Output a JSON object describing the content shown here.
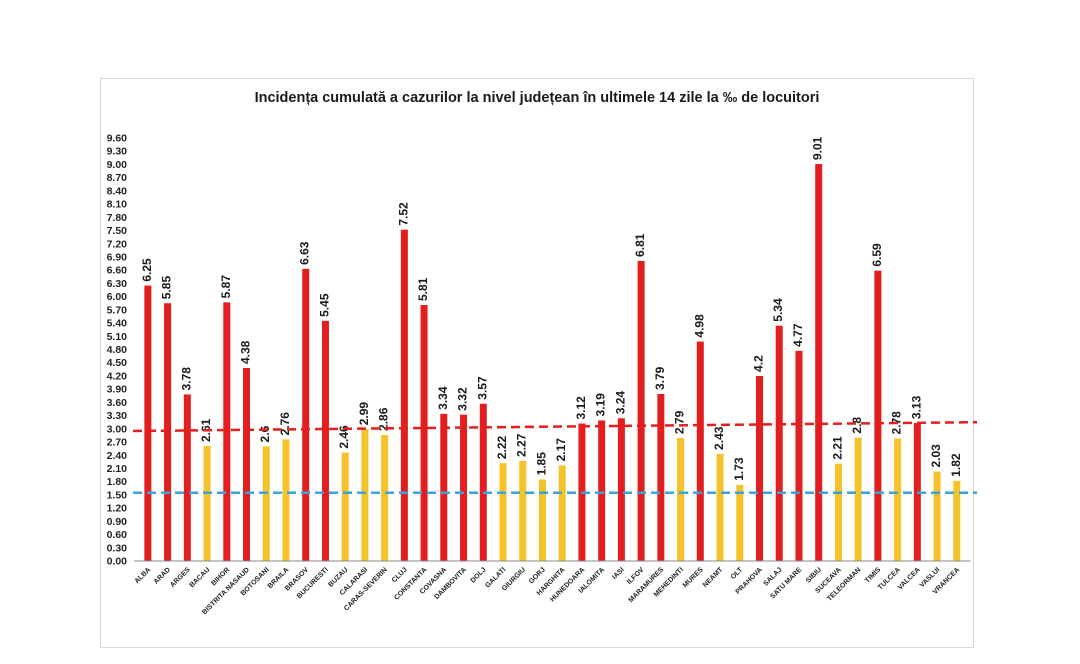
{
  "chart_data": {
    "type": "bar",
    "title": "Incidența cumulată a cazurilor la nivel județean în ultimele 14 zile la ‰ de locuitori",
    "xlabel": "",
    "ylabel": "",
    "ylim": [
      0,
      9.6
    ],
    "yticks": [
      "0.00",
      "0.30",
      "0.60",
      "0.90",
      "1.20",
      "1.50",
      "1.80",
      "2.10",
      "2.40",
      "2.70",
      "3.00",
      "3.30",
      "3.60",
      "3.90",
      "4.20",
      "4.50",
      "4.80",
      "5.10",
      "5.40",
      "5.70",
      "6.00",
      "6.30",
      "6.60",
      "6.90",
      "7.20",
      "7.50",
      "7.80",
      "8.10",
      "8.40",
      "8.70",
      "9.00",
      "9.30",
      "9.60"
    ],
    "categories": [
      "ALBA",
      "ARAD",
      "ARGES",
      "BACAU",
      "BIHOR",
      "BISTRITA NASAUD",
      "BOTOSANI",
      "BRAILA",
      "BRASOV",
      "BUCURESTI",
      "BUZAU",
      "CALARASI",
      "CARAS-SEVERIN",
      "CLUJ",
      "CONSTANTA",
      "COVASNA",
      "DAMBOVITA",
      "DOLJ",
      "GALATI",
      "GIURGIU",
      "GORJ",
      "HARGHITA",
      "HUNEDOARA",
      "IALOMITA",
      "IASI",
      "ILFOV",
      "MARAMURES",
      "MEHEDINTI",
      "MURES",
      "NEAMT",
      "OLT",
      "PRAHOVA",
      "SALAJ",
      "SATU MARE",
      "SIBIU",
      "SUCEAVA",
      "TELEORMAN",
      "TIMIS",
      "TULCEA",
      "VALCEA",
      "VASLUI",
      "VRANCEA"
    ],
    "values": [
      6.25,
      5.85,
      3.78,
      2.61,
      5.87,
      4.38,
      2.6,
      2.76,
      6.63,
      5.45,
      2.46,
      2.99,
      2.86,
      7.52,
      5.81,
      3.34,
      3.32,
      3.57,
      2.22,
      2.27,
      1.85,
      2.17,
      3.12,
      3.19,
      3.24,
      6.81,
      3.79,
      2.79,
      4.98,
      2.43,
      1.73,
      4.2,
      5.34,
      4.77,
      9.01,
      2.21,
      2.8,
      6.59,
      2.78,
      3.13,
      2.03,
      1.82
    ],
    "value_labels": [
      "6.25",
      "5.85",
      "3.78",
      "2.61",
      "5.87",
      "4.38",
      "2.6",
      "2.76",
      "6.63",
      "5.45",
      "2.46",
      "2.99",
      "2.86",
      "7.52",
      "5.81",
      "3.34",
      "3.32",
      "3.57",
      "2.22",
      "2.27",
      "1.85",
      "2.17",
      "3.12",
      "3.19",
      "3.24",
      "6.81",
      "3.79",
      "2.79",
      "4.98",
      "2.43",
      "1.73",
      "4.2",
      "5.34",
      "4.77",
      "9.01",
      "2.21",
      "2.8",
      "6.59",
      "2.78",
      "3.13",
      "2.03",
      "1.82"
    ],
    "bar_colors": [
      "red",
      "red",
      "red",
      "yellow",
      "red",
      "red",
      "yellow",
      "yellow",
      "red",
      "red",
      "yellow",
      "yellow",
      "yellow",
      "red",
      "red",
      "red",
      "red",
      "red",
      "yellow",
      "yellow",
      "yellow",
      "yellow",
      "red",
      "red",
      "red",
      "red",
      "red",
      "yellow",
      "red",
      "yellow",
      "yellow",
      "red",
      "red",
      "red",
      "red",
      "yellow",
      "yellow",
      "red",
      "yellow",
      "red",
      "yellow",
      "yellow"
    ],
    "reference_lines": [
      {
        "color": "#e41e1e",
        "style": "dashed",
        "y_start": 2.95,
        "y_end": 3.15
      },
      {
        "color": "#3aa3d9",
        "style": "dashed",
        "y_start": 1.55,
        "y_end": 1.55
      }
    ],
    "grid": false,
    "legend": "none"
  },
  "colors": {
    "red": "#e41e1e",
    "yellow": "#f6c22a",
    "axis": "#888888"
  }
}
